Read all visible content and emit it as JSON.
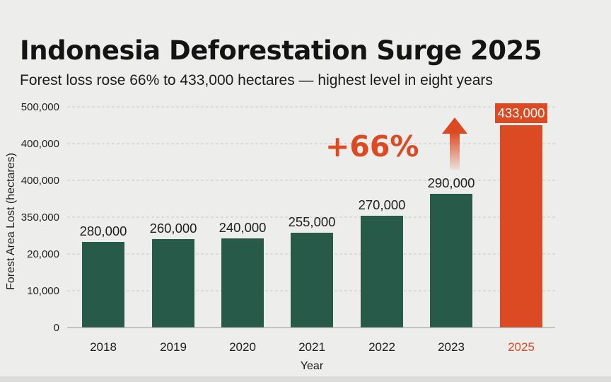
{
  "header": {
    "title": "Indonesia Deforestation Surge 2025",
    "subtitle": "Forest loss rose 66% to 433,000 hectares — highest level in eight years"
  },
  "chart_data": {
    "type": "bar",
    "title": "Indonesia Deforestation Surge 2025",
    "subtitle": "Forest loss rose 66% to 433,000 hectares — highest level in eight years",
    "xlabel": "Year",
    "ylabel": "Forest Area Lost (hectares)",
    "categories": [
      "2018",
      "2019",
      "2020",
      "2021",
      "2022",
      "2023",
      "2025"
    ],
    "values": [
      280000,
      260000,
      240000,
      255000,
      270000,
      290000,
      433000
    ],
    "data_labels": [
      "280,000",
      "260,000",
      "240,000",
      "255,000",
      "270,000",
      "290,000",
      "433,000"
    ],
    "y_tick_labels": [
      "0",
      "10,000",
      "20,000",
      "350,000",
      "400,000",
      "400,000",
      "500,000"
    ],
    "grid": true,
    "highlight": {
      "category": "2025",
      "color": "#dc4a23"
    },
    "bar_color": "#275a49",
    "callout": {
      "text": "+66%",
      "color": "#dc4a23"
    }
  }
}
